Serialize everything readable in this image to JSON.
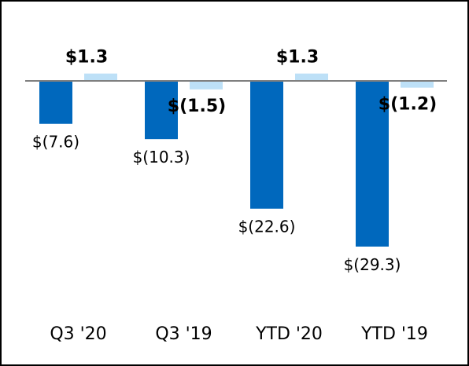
{
  "chart_data": {
    "type": "bar",
    "title": "",
    "xlabel": "",
    "ylabel": "",
    "categories": [
      "Q3 '20",
      "Q3 '19",
      "YTD '20",
      "YTD '19"
    ],
    "series": [
      {
        "values": [
          -7.6,
          -10.3,
          -22.6,
          -29.3
        ],
        "labels": [
          "$(7.6)",
          "$(10.3)",
          "$(22.6)",
          "$(29.3)"
        ],
        "color": "#0068bd"
      },
      {
        "values": [
          1.3,
          -1.5,
          1.3,
          -1.2
        ],
        "labels": [
          "$1.3",
          "$(1.5)",
          "$1.3",
          "$(1.2)"
        ],
        "color": "#bde0f7"
      }
    ],
    "ylim": [
      -30,
      2
    ],
    "grid": false,
    "legend": "none",
    "baseline_color": "#7f7f7f"
  }
}
